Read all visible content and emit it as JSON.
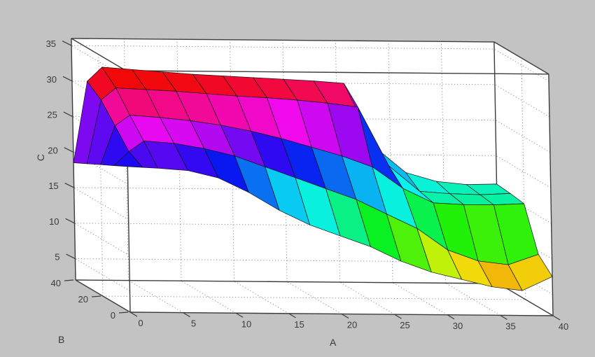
{
  "figure": {
    "background_color": "#c3c3c3",
    "plot_background_color": "#ffffff"
  },
  "axis_labels": {
    "x": "A",
    "y": "B",
    "z": "C"
  },
  "chart_data": {
    "type": "surface",
    "title": "",
    "xlabel": "A",
    "ylabel": "B",
    "zlabel": "C",
    "x_ticks": [
      0,
      5,
      10,
      15,
      20,
      25,
      30,
      35,
      40
    ],
    "y_ticks": [
      0,
      20,
      40
    ],
    "z_ticks": [
      5,
      10,
      15,
      20,
      25,
      30,
      35
    ],
    "xlim": [
      0,
      40
    ],
    "ylim": [
      0,
      40
    ],
    "zlim": [
      2,
      36
    ],
    "grid": true,
    "legend": "none",
    "colormap_note": "rainbow: red = high C (~32), through magenta, purple, blue, cyan, green, yellow, to orange = low C (~5)",
    "a_values": [
      0,
      1.43,
      2.86,
      5.71,
      8.57,
      11.43,
      14.29,
      17.14,
      20,
      22.86,
      25.71,
      28.57,
      31.43,
      34.29,
      37.14,
      40
    ],
    "b_rows_back_to_front": [
      40,
      30,
      20,
      10,
      0
    ],
    "z_values_by_row": [
      [
        18.5,
        30.0,
        32.0,
        31.7,
        31.4,
        31.1,
        30.9,
        30.7,
        30.5,
        30.3,
        30.0,
        21.0,
        17.5,
        16.3,
        15.9,
        16.0
      ],
      [
        19.5,
        28.5,
        30.2,
        30.0,
        29.8,
        29.5,
        29.2,
        29.0,
        28.7,
        28.3,
        27.8,
        19.5,
        16.0,
        15.7,
        15.6,
        15.8
      ],
      [
        20.5,
        26.0,
        27.5,
        27.2,
        26.8,
        26.2,
        25.4,
        24.4,
        23.2,
        22.0,
        20.5,
        17.5,
        15.5,
        15.3,
        15.3,
        15.5
      ],
      [
        21.5,
        23.5,
        25.0,
        24.7,
        24.0,
        23.0,
        21.5,
        20.0,
        18.5,
        17.0,
        15.0,
        13.0,
        10.0,
        8.5,
        8.0,
        9.5
      ],
      [
        22.5,
        22.4,
        22.3,
        22.0,
        21.0,
        19.0,
        16.5,
        14.5,
        13.0,
        11.5,
        9.5,
        8.0,
        7.0,
        6.0,
        5.5,
        7.5
      ]
    ],
    "hue_anchors": [
      [
        33,
        370
      ],
      [
        30.5,
        358
      ],
      [
        29,
        334
      ],
      [
        27,
        310
      ],
      [
        25,
        284
      ],
      [
        23,
        252
      ],
      [
        21,
        226
      ],
      [
        19.5,
        206
      ],
      [
        18,
        188
      ],
      [
        16.5,
        175
      ],
      [
        15,
        152
      ],
      [
        13,
        122
      ],
      [
        11,
        97
      ],
      [
        9,
        65
      ],
      [
        7,
        45
      ],
      [
        5,
        32
      ],
      [
        3.5,
        26
      ]
    ]
  },
  "styles": {
    "box_line_color": "#3d3d3d",
    "grid_line_color": "#8f8f8f",
    "mesh_edge_color": "#121212",
    "tick_label_color": "#3a3a3a",
    "face_saturation": 93,
    "face_lightness": 49
  }
}
